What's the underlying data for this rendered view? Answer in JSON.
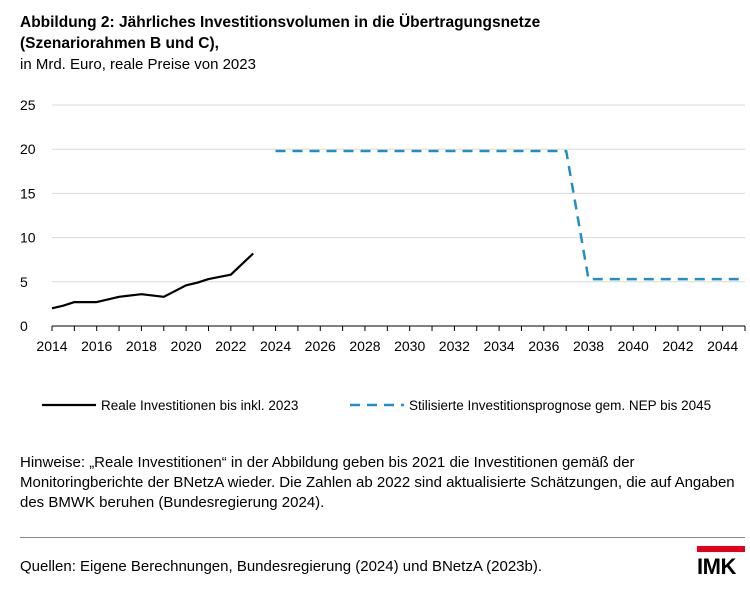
{
  "title_line1": "Abbildung 2: Jährliches Investitionsvolumen in die Übertragungsnetze",
  "title_line2": "(Szenariorahmen B und C),",
  "subtitle": "in Mrd. Euro, reale Preise von 2023",
  "notes": "Hinweise: „Reale Investitionen“ in der Abbildung geben bis 2021 die Investitionen gemäß der Monitoringberichte der BNetzA wieder. Die Zahlen ab 2022 sind aktualisierte Schätzungen, die auf Angaben des BMWK beruhen (Bundesregierung 2024).",
  "source": "Quellen: Eigene Berechnungen, Bundesregierung (2024) und BNetzA (2023b).",
  "logo": "IMK",
  "colors": {
    "series1": "#000000",
    "series2": "#1f8fc4",
    "logo_accent": "#e2001a"
  },
  "chart_data": {
    "type": "line",
    "xlim": [
      2014,
      2045
    ],
    "ylim": [
      0,
      25
    ],
    "x_ticks": [
      "2014",
      "2016",
      "2018",
      "2020",
      "2022",
      "2024",
      "2026",
      "2028",
      "2030",
      "2032",
      "2034",
      "2036",
      "2038",
      "2040",
      "2042",
      "2044"
    ],
    "y_ticks": [
      "0",
      "5",
      "10",
      "15",
      "20",
      "25"
    ],
    "grid": "horizontal",
    "legend_position": "bottom",
    "series": [
      {
        "name": "Reale Investitionen bis inkl. 2023",
        "style": "solid",
        "x": [
          2014,
          2014.5,
          2015,
          2016,
          2017,
          2018,
          2019,
          2020,
          2020.5,
          2021,
          2022,
          2022.5,
          2023
        ],
        "y": [
          2.0,
          2.3,
          2.7,
          2.7,
          3.3,
          3.6,
          3.3,
          4.6,
          4.9,
          5.3,
          5.8,
          7.0,
          8.2
        ]
      },
      {
        "name": "Stilisierte Investitionsprognose gem. NEP bis 2045",
        "style": "dashed",
        "x": [
          2024,
          2037,
          2038,
          2045
        ],
        "y": [
          19.8,
          19.8,
          5.3,
          5.3
        ]
      }
    ]
  }
}
